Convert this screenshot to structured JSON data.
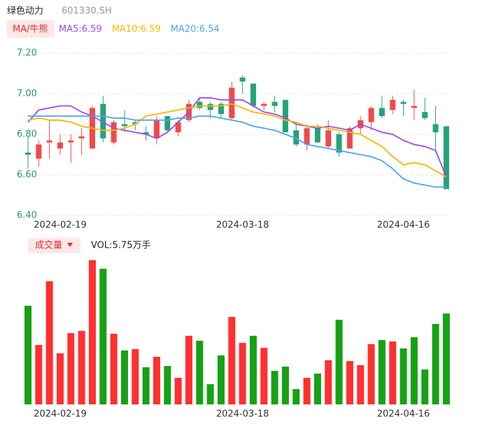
{
  "header": {
    "title": "绿色动力",
    "code": "601330.SH"
  },
  "chart_data": [
    {
      "type": "candlestick",
      "button": "MA/牛熊",
      "categories": [
        null,
        null,
        null,
        "2024-02-19",
        null,
        null,
        null,
        null,
        null,
        null,
        null,
        null,
        null,
        null,
        null,
        null,
        null,
        null,
        null,
        null,
        "2024-03-18",
        null,
        null,
        null,
        null,
        null,
        null,
        null,
        null,
        null,
        null,
        null,
        null,
        null,
        null,
        "2024-04-16",
        null,
        null,
        null,
        null
      ],
      "open": [
        6.71,
        6.68,
        6.76,
        6.73,
        6.76,
        6.78,
        6.73,
        6.95,
        6.76,
        6.85,
        6.86,
        6.81,
        6.78,
        6.89,
        6.81,
        6.87,
        6.96,
        6.95,
        6.95,
        6.88,
        7.08,
        7.05,
        6.94,
        6.96,
        6.97,
        6.82,
        6.75,
        6.83,
        6.74,
        6.8,
        6.73,
        6.83,
        6.86,
        6.93,
        6.92,
        6.96,
        6.93,
        6.91,
        6.85,
        6.84
      ],
      "high": [
        6.79,
        6.77,
        6.87,
        6.8,
        6.8,
        6.83,
        6.94,
        6.99,
        6.87,
        6.92,
        6.87,
        6.84,
        6.89,
        6.89,
        6.87,
        6.97,
        6.98,
        6.96,
        6.96,
        7.06,
        7.09,
        7.05,
        6.96,
        6.99,
        6.97,
        6.86,
        6.85,
        6.85,
        6.87,
        6.81,
        6.84,
        6.89,
        6.94,
        6.99,
        6.99,
        6.97,
        7.02,
        6.98,
        6.94,
        6.84
      ],
      "low": [
        6.63,
        6.64,
        6.68,
        6.7,
        6.66,
        6.7,
        6.73,
        6.76,
        6.75,
        6.81,
        6.82,
        6.77,
        6.75,
        6.81,
        6.79,
        6.86,
        6.92,
        6.88,
        6.88,
        6.87,
        7.0,
        6.93,
        6.92,
        6.91,
        6.81,
        6.74,
        6.72,
        6.76,
        6.73,
        6.69,
        6.73,
        6.8,
        6.82,
        6.88,
        6.9,
        6.89,
        6.87,
        6.87,
        6.71,
        6.53
      ],
      "close": [
        6.7,
        6.75,
        6.77,
        6.76,
        6.77,
        6.79,
        6.93,
        6.78,
        6.86,
        6.84,
        6.85,
        6.8,
        6.87,
        6.82,
        6.86,
        6.95,
        6.93,
        6.92,
        6.9,
        7.03,
        7.06,
        6.94,
        6.95,
        6.94,
        6.81,
        6.75,
        6.83,
        6.76,
        6.82,
        6.71,
        6.83,
        6.87,
        6.93,
        6.89,
        6.97,
        6.95,
        6.94,
        6.88,
        6.81,
        6.53
      ],
      "up_color": "#f04a4a",
      "down_color": "#26a17b",
      "series": [
        {
          "name": "MA5:6.59",
          "color": "#9b4dea",
          "values": [
            6.86,
            6.92,
            6.93,
            6.94,
            6.94,
            6.91,
            6.89,
            6.86,
            6.83,
            6.82,
            6.81,
            6.8,
            6.78,
            6.81,
            6.86,
            6.91,
            6.98,
            6.98,
            6.97,
            6.97,
            6.97,
            6.94,
            6.91,
            6.9,
            6.88,
            6.85,
            6.84,
            6.83,
            6.84,
            6.83,
            6.82,
            6.85,
            6.83,
            6.81,
            6.8,
            6.77,
            6.75,
            6.74,
            6.72,
            6.59
          ]
        },
        {
          "name": "MA10:6.59",
          "color": "#f5b800",
          "values": [
            6.87,
            6.88,
            6.87,
            6.87,
            6.86,
            6.84,
            6.83,
            6.82,
            6.82,
            6.83,
            6.85,
            6.89,
            6.9,
            6.91,
            6.92,
            6.93,
            6.94,
            6.94,
            6.94,
            6.95,
            6.93,
            6.91,
            6.9,
            6.89,
            6.87,
            6.86,
            6.84,
            6.84,
            6.83,
            6.82,
            6.81,
            6.8,
            6.77,
            6.74,
            6.69,
            6.65,
            6.66,
            6.65,
            6.62,
            6.59
          ]
        },
        {
          "name": "MA20:6.54",
          "color": "#4fa3f0",
          "values": [
            6.89,
            6.89,
            6.89,
            6.89,
            6.89,
            6.89,
            6.89,
            6.89,
            6.88,
            6.88,
            6.87,
            6.87,
            6.87,
            6.87,
            6.88,
            6.88,
            6.89,
            6.89,
            6.88,
            6.87,
            6.86,
            6.84,
            6.83,
            6.82,
            6.8,
            6.78,
            6.75,
            6.74,
            6.73,
            6.72,
            6.71,
            6.7,
            6.69,
            6.67,
            6.63,
            6.58,
            6.56,
            6.55,
            6.54,
            6.54
          ]
        }
      ],
      "ylim": [
        6.4,
        7.2
      ],
      "yticks": [
        {
          "value": 7.2,
          "label": "7.20"
        },
        {
          "value": 7.0,
          "label": "7.00"
        },
        {
          "value": 6.8,
          "label": "6.80"
        },
        {
          "value": 6.6,
          "label": "6.60"
        },
        {
          "value": 6.4,
          "label": "6.40"
        }
      ],
      "grid": true
    },
    {
      "type": "bar",
      "title": "成交量",
      "label": "VOL:5.75万手",
      "categories": [
        null,
        null,
        null,
        "2024-02-19",
        null,
        null,
        null,
        null,
        null,
        null,
        null,
        null,
        null,
        null,
        null,
        null,
        null,
        null,
        null,
        null,
        "2024-03-18",
        null,
        null,
        null,
        null,
        null,
        null,
        null,
        null,
        null,
        null,
        null,
        null,
        null,
        null,
        "2024-04-16",
        null,
        null,
        null,
        null
      ],
      "values": [
        6.24,
        3.76,
        7.79,
        3.23,
        4.51,
        4.65,
        9.12,
        8.58,
        4.47,
        3.41,
        3.5,
        2.35,
        3.01,
        2.43,
        1.68,
        4.34,
        4.03,
        1.28,
        3.1,
        5.53,
        3.89,
        4.34,
        3.58,
        2.12,
        2.39,
        0.97,
        1.68,
        1.95,
        2.79,
        5.35,
        2.74,
        2.48,
        3.81,
        4.07,
        3.98,
        3.54,
        4.25,
        2.21,
        5.09,
        5.75
      ],
      "colors": [
        "#16a116",
        "#ff3030",
        "#ff3030",
        "#ff3030",
        "#ff3030",
        "#ff3030",
        "#ff3030",
        "#16a116",
        "#ff3030",
        "#16a116",
        "#ff3030",
        "#16a116",
        "#ff3030",
        "#16a116",
        "#ff3030",
        "#ff3030",
        "#16a116",
        "#16a116",
        "#16a116",
        "#ff3030",
        "#ff3030",
        "#16a116",
        "#ff3030",
        "#16a116",
        "#16a116",
        "#16a116",
        "#ff3030",
        "#16a116",
        "#ff3030",
        "#16a116",
        "#ff3030",
        "#ff3030",
        "#ff3030",
        "#16a116",
        "#ff3030",
        "#16a116",
        "#16a116",
        "#16a116",
        "#16a116",
        "#16a116"
      ],
      "ylim": [
        0,
        10
      ]
    }
  ]
}
